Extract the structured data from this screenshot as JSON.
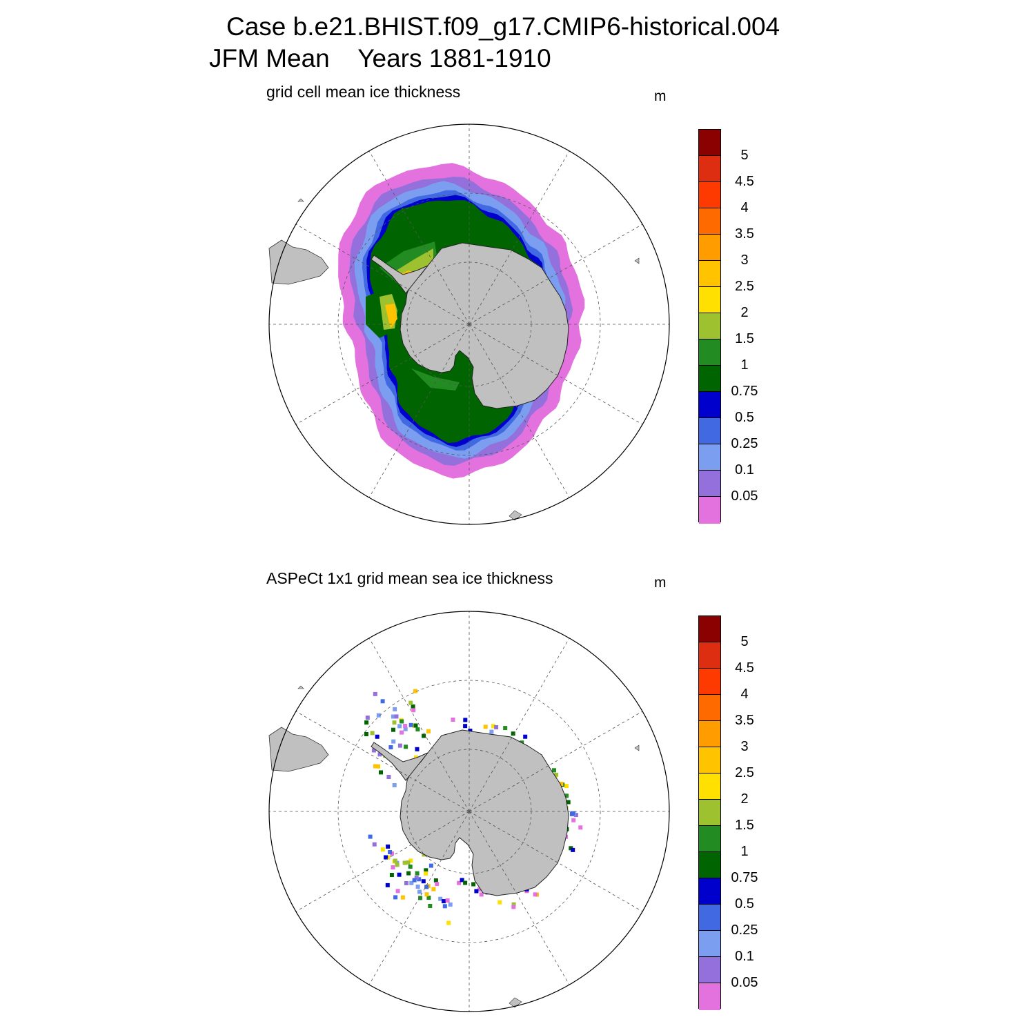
{
  "title": {
    "case_line": "Case b.e21.BHIST.f09_g17.CMIP6-historical.004",
    "period_line": "JFM Mean    Years 1881-1910"
  },
  "panels": [
    {
      "id": "model",
      "subtitle": "grid cell mean ice thickness",
      "units": "m",
      "field": "grid cell mean ice thickness",
      "style": "continuous-bands"
    },
    {
      "id": "obs",
      "subtitle": "ASPeCt 1x1 grid mean sea ice thickness",
      "units": "m",
      "field": "ASPeCt 1x1 grid mean sea ice thickness",
      "style": "ship-track-pixels"
    }
  ],
  "colorbar": {
    "labels": [
      "5",
      "4.5",
      "4",
      "3.5",
      "3",
      "2.5",
      "2",
      "1.5",
      "1",
      "0.75",
      "0.5",
      "0.25",
      "0.1",
      "0.05"
    ],
    "colors": [
      "#8b0000",
      "#dd2e12",
      "#ff3a00",
      "#ff6a00",
      "#ff9c00",
      "#ffc300",
      "#ffe000",
      "#9dc12f",
      "#228b22",
      "#006400",
      "#0000cd",
      "#4169e1",
      "#7b9ef0",
      "#9370db",
      "#e472de"
    ]
  },
  "map": {
    "projection": "south-polar-stereographic",
    "land_color": "#c0c0c0",
    "grid": "dashed-lat-lon"
  }
}
